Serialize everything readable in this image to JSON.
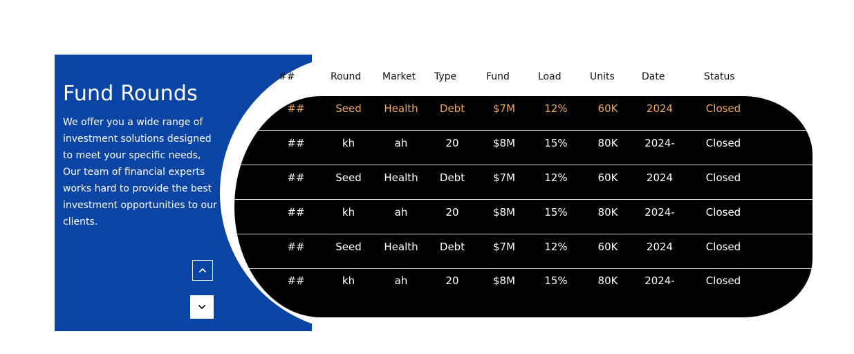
{
  "section": {
    "title": "Fund Rounds",
    "description": "We offer you a wide range of investment solutions designed to meet your specific needs, Our team of financial experts works hard to provide the best investment opportunities to our clients."
  },
  "navigation": {
    "up_icon": "chevron-up-icon",
    "down_icon": "chevron-down-icon"
  },
  "table": {
    "headers": [
      "##",
      "Round",
      "Market",
      "Type",
      "Fund",
      "Load",
      "Units",
      "Date",
      "Status"
    ],
    "rows": [
      [
        "##",
        "Seed",
        "Health",
        "Debt",
        "$7M",
        "12%",
        "60K",
        "2024",
        "Closed"
      ],
      [
        "##",
        "kh",
        "ah",
        "20",
        "$8M",
        "15%",
        "80K",
        "2024-",
        "Closed"
      ],
      [
        "##",
        "Seed",
        "Health",
        "Debt",
        "$7M",
        "12%",
        "60K",
        "2024",
        "Closed"
      ],
      [
        "##",
        "kh",
        "ah",
        "20",
        "$8M",
        "15%",
        "80K",
        "2024-",
        "Closed"
      ],
      [
        "##",
        "Seed",
        "Health",
        "Debt",
        "$7M",
        "12%",
        "60K",
        "2024",
        "Closed"
      ],
      [
        "##",
        "kh",
        "ah",
        "20",
        "$8M",
        "15%",
        "80K",
        "2024-",
        "Closed"
      ]
    ],
    "highlighted_row": 0
  },
  "colors": {
    "panel_blue": "#0a45a6",
    "table_black": "#000000",
    "highlight_orange": "#f0a860",
    "row_text": "#ffffff",
    "header_text": "#111111"
  }
}
